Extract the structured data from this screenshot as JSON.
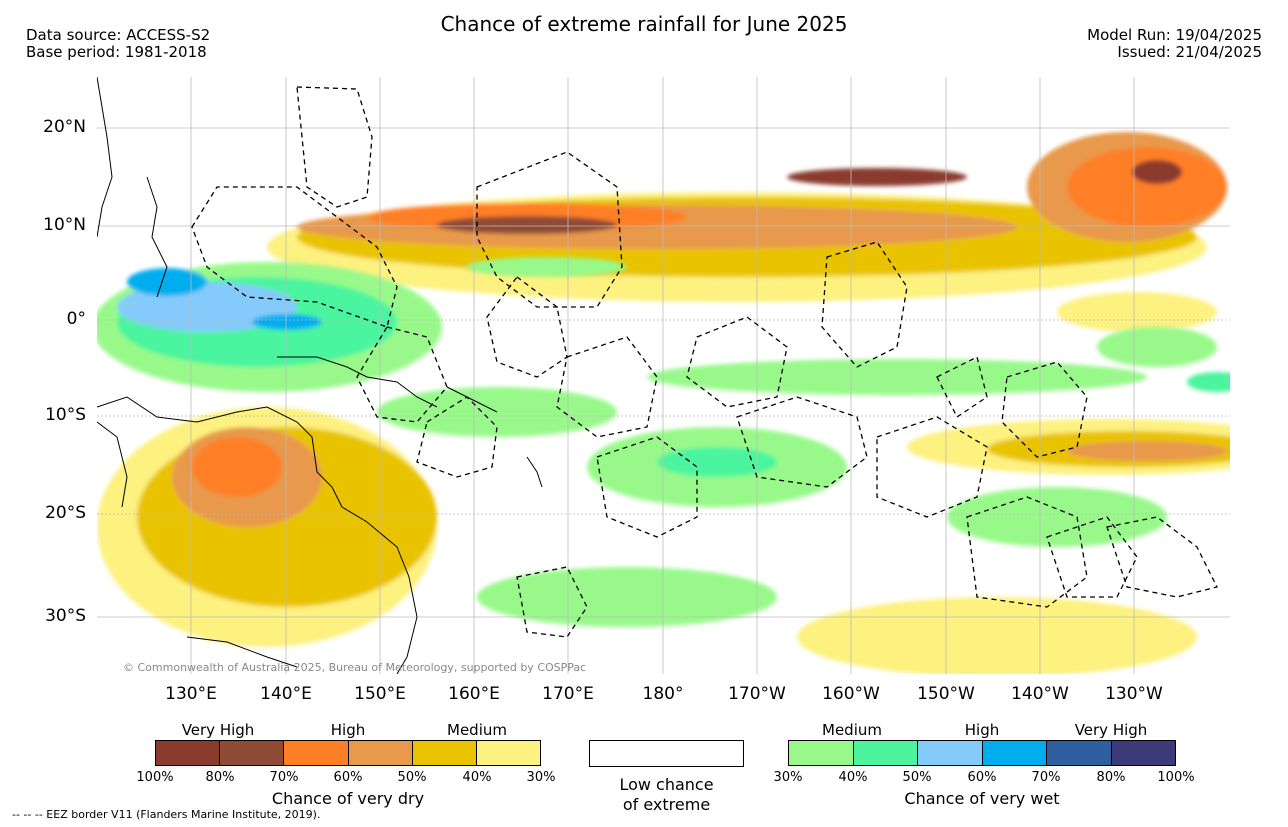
{
  "header": {
    "title": "Chance of extreme rainfall for June 2025",
    "left": [
      "Data source: ACCESS-S2",
      "Base period: 1981-2018"
    ],
    "right": [
      "Model Run: 19/04/2025",
      "Issued: 21/04/2025"
    ]
  },
  "map": {
    "lat_labels": [
      "20°N",
      "10°N",
      "0°",
      "10°S",
      "20°S",
      "30°S"
    ],
    "lon_labels": [
      "130°E",
      "140°E",
      "150°E",
      "160°E",
      "170°E",
      "180°",
      "170°W",
      "160°W",
      "150°W",
      "140°W",
      "130°W"
    ],
    "copyright": "© Commonwealth of Australia 2025, Bureau of Meteorology, supported by COSPPac",
    "grid": true
  },
  "legend": {
    "dry": {
      "categories": [
        "Very High",
        "High",
        "Medium"
      ],
      "colors": [
        "#8b3a2e",
        "#8f4b36",
        "#ff7f27",
        "#e8994b",
        "#e9c300",
        "#fdf180"
      ],
      "ticks": [
        "100%",
        "80%",
        "70%",
        "60%",
        "50%",
        "40%",
        "30%"
      ],
      "caption": "Chance of very dry"
    },
    "low": {
      "caption_line1": "Low chance",
      "caption_line2": "of extreme",
      "color": "#ffffff"
    },
    "wet": {
      "categories": [
        "Medium",
        "High",
        "Very High"
      ],
      "colors": [
        "#98f98a",
        "#4cf49e",
        "#84cbfb",
        "#00aeef",
        "#2f5fa0",
        "#3c3a78"
      ],
      "ticks": [
        "30%",
        "40%",
        "50%",
        "60%",
        "70%",
        "80%",
        "100%"
      ],
      "caption": "Chance of very wet"
    }
  },
  "footer": "--  --  -- EEZ border V11 (Flanders Marine Institute, 2019)."
}
